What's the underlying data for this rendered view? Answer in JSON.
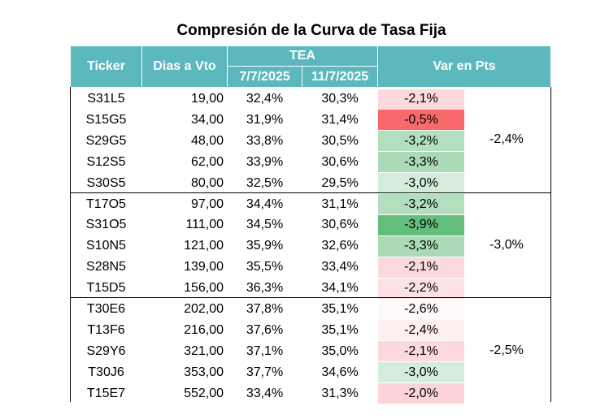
{
  "title": "Compresión de la Curva de Tasa Fija",
  "headers": {
    "ticker": "Ticker",
    "dias": "Dias a Vto",
    "tea": "TEA",
    "date1": "7/7/2025",
    "date2": "11/7/2025",
    "var": "Var en Pts"
  },
  "colors": {
    "header_bg": "#5cb8bd",
    "red_strong": "#f8696b",
    "green_strong": "#63be7b"
  },
  "rows": [
    {
      "ticker": "S31L5",
      "dias": "19,00",
      "tea1": "32,4%",
      "tea2": "30,3%",
      "var": "-2,1%",
      "bg": "#fcd9dc"
    },
    {
      "ticker": "S15G5",
      "dias": "34,00",
      "tea1": "31,9%",
      "tea2": "31,4%",
      "var": "-0,5%",
      "bg": "#f8696b"
    },
    {
      "ticker": "S29G5",
      "dias": "48,00",
      "tea1": "33,8%",
      "tea2": "30,5%",
      "var": "-3,2%",
      "bg": "#b3dfbf"
    },
    {
      "ticker": "S12S5",
      "dias": "62,00",
      "tea1": "33,9%",
      "tea2": "30,6%",
      "var": "-3,3%",
      "bg": "#aadbb6"
    },
    {
      "ticker": "S30S5",
      "dias": "80,00",
      "tea1": "32,5%",
      "tea2": "29,5%",
      "var": "-3,0%",
      "bg": "#d5ecdb"
    },
    {
      "ticker": "T17O5",
      "dias": "97,00",
      "tea1": "34,4%",
      "tea2": "31,1%",
      "var": "-3,2%",
      "bg": "#b3dfbf"
    },
    {
      "ticker": "S31O5",
      "dias": "111,00",
      "tea1": "34,5%",
      "tea2": "30,6%",
      "var": "-3,9%",
      "bg": "#63be7b"
    },
    {
      "ticker": "S10N5",
      "dias": "121,00",
      "tea1": "35,9%",
      "tea2": "32,6%",
      "var": "-3,3%",
      "bg": "#aadbb6"
    },
    {
      "ticker": "S28N5",
      "dias": "139,00",
      "tea1": "35,5%",
      "tea2": "33,4%",
      "var": "-2,1%",
      "bg": "#fcd9dc"
    },
    {
      "ticker": "T15D5",
      "dias": "156,00",
      "tea1": "36,3%",
      "tea2": "34,1%",
      "var": "-2,2%",
      "bg": "#fde2e5"
    },
    {
      "ticker": "T30E6",
      "dias": "202,00",
      "tea1": "37,8%",
      "tea2": "35,1%",
      "var": "-2,6%",
      "bg": "#fefafa"
    },
    {
      "ticker": "T13F6",
      "dias": "216,00",
      "tea1": "37,6%",
      "tea2": "35,1%",
      "var": "-2,4%",
      "bg": "#fdeef0"
    },
    {
      "ticker": "S29Y6",
      "dias": "321,00",
      "tea1": "37,1%",
      "tea2": "35,0%",
      "var": "-2,1%",
      "bg": "#fcd9dc"
    },
    {
      "ticker": "T30J6",
      "dias": "353,00",
      "tea1": "37,7%",
      "tea2": "34,6%",
      "var": "-3,0%",
      "bg": "#d5ecdb"
    },
    {
      "ticker": "T15E7",
      "dias": "552,00",
      "tea1": "33,4%",
      "tea2": "31,3%",
      "var": "-2,0%",
      "bg": "#fcd3d6"
    }
  ],
  "groups": [
    {
      "label": "-2,4%"
    },
    {
      "label": "-3,0%"
    },
    {
      "label": "-2,5%"
    }
  ]
}
